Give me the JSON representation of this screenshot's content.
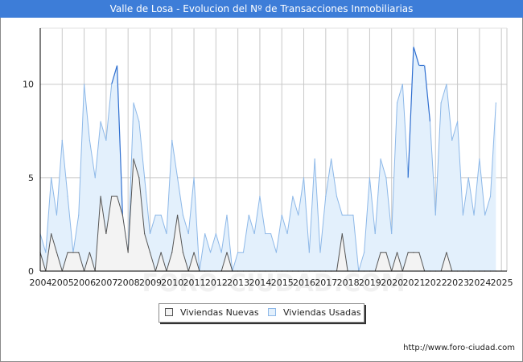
{
  "title": "Valle de Losa - Evolucion del Nº de Transacciones Inmobiliarias",
  "source_url": "http://www.foro-ciudad.com",
  "watermark": "FORO-CIUDAD.COM",
  "colors": {
    "title_bg": "#3d7dd8",
    "nuevas_line": "#555555",
    "nuevas_fill": "#f3f3f3",
    "usadas_line": "#8db8e8",
    "usadas_peak": "#2f6fd0",
    "usadas_fill": "#e3f0fc",
    "grid": "#c8c8c8"
  },
  "legend": {
    "nuevas": "Viviendas Nuevas",
    "usadas": "Viviendas Usadas"
  },
  "chart_data": {
    "type": "area",
    "title": "Valle de Losa - Evolucion del Nº de Transacciones Inmobiliarias",
    "xlabel": "",
    "ylabel": "",
    "x_tick_labels": [
      "2004",
      "2005",
      "2006",
      "2007",
      "2008",
      "2009",
      "2010",
      "2011",
      "2012",
      "2013",
      "2014",
      "2015",
      "2016",
      "2017",
      "2018",
      "2019",
      "2020",
      "2021",
      "2022",
      "2023",
      "2024",
      "2025"
    ],
    "xlim": [
      2004,
      2025.25
    ],
    "ylim": [
      0,
      13
    ],
    "yticks": [
      0,
      5,
      10
    ],
    "grid": true,
    "legend_position": "bottom-center",
    "x_start": 2004,
    "x_step": 0.25,
    "series": [
      {
        "name": "Viviendas Usadas",
        "values": [
          2,
          1,
          5,
          3,
          7,
          4,
          1,
          3,
          10,
          7,
          5,
          8,
          7,
          10,
          11,
          3,
          1,
          9,
          8,
          5,
          2,
          3,
          3,
          2,
          7,
          5,
          3,
          2,
          5,
          0,
          2,
          1,
          2,
          1,
          3,
          0,
          1,
          1,
          3,
          2,
          4,
          2,
          2,
          1,
          3,
          2,
          4,
          3,
          5,
          1,
          6,
          1,
          4,
          6,
          4,
          3,
          3,
          3,
          0,
          1,
          5,
          2,
          6,
          5,
          2,
          9,
          10,
          5,
          12,
          11,
          11,
          8,
          3,
          9,
          10,
          7,
          8,
          3,
          5,
          3,
          6,
          3,
          4,
          9
        ]
      },
      {
        "name": "Viviendas Nuevas",
        "values": [
          1,
          0,
          2,
          1,
          0,
          1,
          1,
          1,
          0,
          1,
          0,
          4,
          2,
          4,
          4,
          3,
          1,
          6,
          5,
          2,
          1,
          0,
          1,
          0,
          1,
          3,
          1,
          0,
          1,
          0,
          0,
          0,
          0,
          0,
          1,
          0,
          0,
          0,
          0,
          0,
          0,
          0,
          0,
          0,
          0,
          0,
          0,
          0,
          0,
          0,
          0,
          0,
          0,
          0,
          0,
          2,
          0,
          0,
          0,
          0,
          0,
          0,
          1,
          1,
          0,
          1,
          0,
          1,
          1,
          1,
          0,
          0,
          0,
          0,
          1,
          0,
          0,
          0,
          0,
          0,
          0,
          0,
          0,
          0
        ]
      }
    ]
  }
}
